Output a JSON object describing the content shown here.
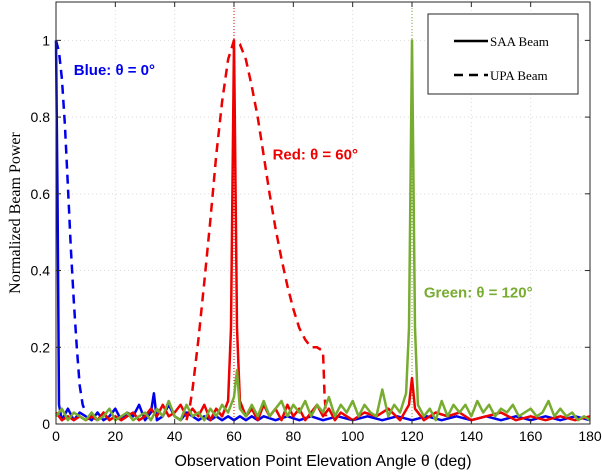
{
  "chart_data": {
    "type": "line",
    "xlabel": "Observation Point Elevation Angle θ (deg)",
    "ylabel": "Normalized Beam Power",
    "xlim": [
      0,
      180
    ],
    "ylim": [
      0,
      1.1
    ],
    "xticks": [
      "0",
      "20",
      "40",
      "60",
      "80",
      "100",
      "120",
      "140",
      "160",
      "180"
    ],
    "yticks": [
      "0",
      "0.2",
      "0.4",
      "0.6",
      "0.8",
      "1"
    ],
    "grid": true,
    "legend": {
      "placement": "top-right",
      "entries": [
        {
          "label": "SAA Beam",
          "style": "solid"
        },
        {
          "label": "UPA Beam",
          "style": "dashed"
        }
      ]
    },
    "annotations": [
      {
        "text": "Blue: θ = 0°",
        "color": "#0000ee",
        "x": 6,
        "y": 0.91
      },
      {
        "text": "Red: θ = 60°",
        "color": "#ee0000",
        "x": 73,
        "y": 0.69
      },
      {
        "text": "Green: θ = 120°",
        "color": "#77ac30",
        "x": 124,
        "y": 0.33
      }
    ],
    "markers": [
      {
        "x": 0,
        "color": "#0000ee"
      },
      {
        "x": 60,
        "color": "#ee0000"
      },
      {
        "x": 120,
        "color": "#77ac30"
      }
    ],
    "series": [
      {
        "style": "dashed",
        "color": "#0000ee",
        "x": [
          0,
          1,
          2,
          3,
          4,
          5,
          6,
          7,
          8,
          9,
          10
        ],
        "y": [
          1.0,
          0.97,
          0.9,
          0.78,
          0.62,
          0.46,
          0.32,
          0.2,
          0.1,
          0.05,
          0.03
        ]
      },
      {
        "style": "dashed",
        "color": "#ee0000",
        "x": [
          44,
          45,
          46,
          48,
          50,
          52,
          54,
          56,
          58,
          60,
          62,
          64,
          66,
          68,
          70,
          72,
          74,
          76,
          78,
          80,
          82,
          84,
          86,
          88,
          90,
          90.5,
          91
        ],
        "y": [
          0.01,
          0.04,
          0.09,
          0.22,
          0.37,
          0.53,
          0.7,
          0.84,
          0.95,
          1.0,
          0.99,
          0.95,
          0.88,
          0.8,
          0.7,
          0.6,
          0.51,
          0.43,
          0.36,
          0.3,
          0.25,
          0.22,
          0.2,
          0.2,
          0.19,
          0.08,
          0.02
        ]
      },
      {
        "style": "solid",
        "color": "#0000ee",
        "x": [
          0,
          0.5,
          1,
          2,
          4,
          6,
          8,
          10,
          12,
          14,
          16,
          18,
          20,
          22,
          24,
          26,
          28,
          30,
          32,
          33,
          34,
          36,
          38,
          40,
          42,
          44,
          46,
          48,
          50,
          52,
          54,
          56,
          58,
          60,
          62,
          64,
          66,
          68,
          70,
          74,
          78,
          82,
          86,
          90,
          95,
          100,
          105,
          110,
          115,
          120,
          125,
          130,
          135,
          140,
          145,
          150,
          155,
          160,
          165,
          170,
          175,
          180
        ],
        "y": [
          1.0,
          0.6,
          0.05,
          0.01,
          0.04,
          0.01,
          0.03,
          0.02,
          0.01,
          0.03,
          0.01,
          0.02,
          0.04,
          0.01,
          0.03,
          0.02,
          0.05,
          0.01,
          0.03,
          0.08,
          0.01,
          0.02,
          0.05,
          0.02,
          0.01,
          0.03,
          0.02,
          0.01,
          0.02,
          0.01,
          0.02,
          0.01,
          0.02,
          0.01,
          0.02,
          0.01,
          0.02,
          0.01,
          0.02,
          0.01,
          0.02,
          0.01,
          0.02,
          0.01,
          0.02,
          0.01,
          0.02,
          0.01,
          0.02,
          0.01,
          0.02,
          0.01,
          0.02,
          0.01,
          0.02,
          0.01,
          0.02,
          0.01,
          0.02,
          0.01,
          0.02,
          0.01
        ]
      },
      {
        "style": "solid",
        "color": "#ee0000",
        "x": [
          0,
          2,
          4,
          6,
          8,
          10,
          12,
          14,
          16,
          18,
          20,
          22,
          24,
          26,
          28,
          30,
          32,
          34,
          36,
          38,
          40,
          42,
          44,
          46,
          48,
          50,
          52,
          54,
          56,
          58,
          59,
          60,
          61,
          62,
          64,
          66,
          68,
          70,
          72,
          74,
          76,
          78,
          80,
          82,
          84,
          86,
          88,
          90,
          92,
          94,
          96,
          98,
          100,
          104,
          108,
          112,
          116,
          119,
          120,
          121,
          124,
          128,
          132,
          136,
          140,
          145,
          150,
          155,
          160,
          165,
          170,
          175,
          180
        ],
        "y": [
          0.03,
          0.01,
          0.02,
          0.01,
          0.02,
          0.01,
          0.02,
          0.01,
          0.03,
          0.01,
          0.02,
          0.01,
          0.02,
          0.03,
          0.01,
          0.02,
          0.04,
          0.02,
          0.05,
          0.02,
          0.03,
          0.05,
          0.02,
          0.04,
          0.02,
          0.05,
          0.01,
          0.04,
          0.02,
          0.06,
          0.25,
          1.0,
          0.25,
          0.06,
          0.02,
          0.04,
          0.01,
          0.05,
          0.02,
          0.04,
          0.01,
          0.05,
          0.02,
          0.04,
          0.01,
          0.03,
          0.05,
          0.02,
          0.04,
          0.01,
          0.03,
          0.02,
          0.01,
          0.03,
          0.02,
          0.04,
          0.01,
          0.05,
          0.12,
          0.04,
          0.01,
          0.03,
          0.02,
          0.03,
          0.01,
          0.02,
          0.03,
          0.01,
          0.02,
          0.01,
          0.02,
          0.01,
          0.02
        ]
      },
      {
        "style": "solid",
        "color": "#77ac30",
        "x": [
          0,
          2,
          4,
          6,
          8,
          10,
          12,
          14,
          16,
          18,
          20,
          22,
          24,
          26,
          28,
          30,
          32,
          34,
          36,
          38,
          40,
          42,
          44,
          46,
          48,
          50,
          52,
          54,
          56,
          58,
          60,
          61,
          62,
          64,
          66,
          68,
          70,
          72,
          74,
          76,
          78,
          80,
          82,
          84,
          86,
          88,
          90,
          92,
          94,
          96,
          98,
          100,
          102,
          104,
          106,
          108,
          110,
          112,
          114,
          116,
          118,
          119,
          120,
          121,
          122,
          124,
          126,
          128,
          130,
          132,
          134,
          136,
          138,
          140,
          142,
          144,
          146,
          148,
          150,
          152,
          154,
          156,
          158,
          160,
          162,
          164,
          166,
          168,
          170,
          172,
          174,
          176,
          178,
          180
        ],
        "y": [
          0.02,
          0.04,
          0.01,
          0.03,
          0.02,
          0.01,
          0.03,
          0.01,
          0.02,
          0.04,
          0.01,
          0.02,
          0.03,
          0.01,
          0.02,
          0.03,
          0.01,
          0.04,
          0.02,
          0.06,
          0.02,
          0.01,
          0.05,
          0.02,
          0.03,
          0.01,
          0.04,
          0.02,
          0.05,
          0.03,
          0.07,
          0.14,
          0.04,
          0.02,
          0.05,
          0.02,
          0.06,
          0.02,
          0.04,
          0.06,
          0.02,
          0.05,
          0.03,
          0.06,
          0.02,
          0.05,
          0.03,
          0.07,
          0.02,
          0.05,
          0.03,
          0.06,
          0.02,
          0.05,
          0.03,
          0.02,
          0.09,
          0.02,
          0.05,
          0.03,
          0.08,
          0.25,
          1.0,
          0.25,
          0.05,
          0.02,
          0.04,
          0.01,
          0.06,
          0.02,
          0.05,
          0.03,
          0.05,
          0.02,
          0.06,
          0.03,
          0.05,
          0.02,
          0.04,
          0.03,
          0.05,
          0.02,
          0.03,
          0.04,
          0.02,
          0.03,
          0.06,
          0.02,
          0.04,
          0.02,
          0.03,
          0.01,
          0.02,
          0.01
        ]
      }
    ]
  }
}
